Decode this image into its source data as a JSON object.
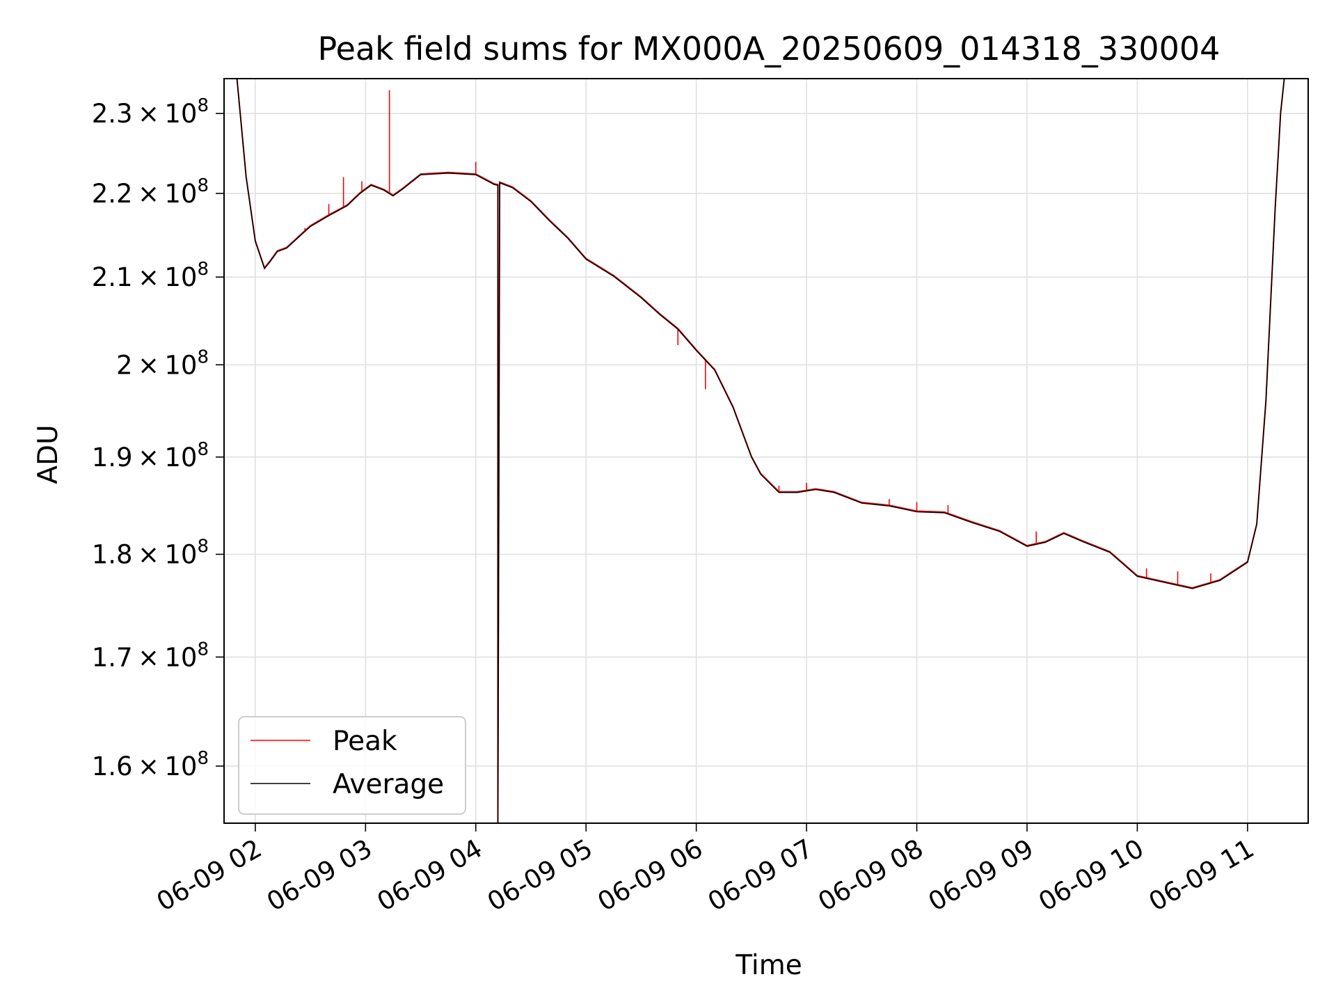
{
  "chart_data": {
    "type": "line",
    "title": "Peak field sums for MX000A_20250609_014318_330004",
    "xlabel": "Time",
    "ylabel": "ADU",
    "yscale": "log",
    "ylim": [
      155000000,
      234500000
    ],
    "xlim": [
      "2025-06-09 01:43",
      "2025-06-09 11:33"
    ],
    "grid": true,
    "legend_position": "lower-left",
    "x_ticks": [
      "2025-06-09 02:00",
      "2025-06-09 03:00",
      "2025-06-09 04:00",
      "2025-06-09 05:00",
      "2025-06-09 06:00",
      "2025-06-09 07:00",
      "2025-06-09 08:00",
      "2025-06-09 09:00",
      "2025-06-09 10:00",
      "2025-06-09 11:00"
    ],
    "x_tick_labels": [
      "06-09 02",
      "06-09 03",
      "06-09 04",
      "06-09 05",
      "06-09 06",
      "06-09 07",
      "06-09 08",
      "06-09 09",
      "06-09 10",
      "06-09 11"
    ],
    "y_ticks": [
      {
        "value": 160000000,
        "mantissa": "1.6",
        "exponent": "8"
      },
      {
        "value": 170000000,
        "mantissa": "1.7",
        "exponent": "8"
      },
      {
        "value": 180000000,
        "mantissa": "1.8",
        "exponent": "8"
      },
      {
        "value": 190000000,
        "mantissa": "1.9",
        "exponent": "8"
      },
      {
        "value": 200000000,
        "mantissa": "2",
        "exponent": "8"
      },
      {
        "value": 210000000,
        "mantissa": "2.1",
        "exponent": "8"
      },
      {
        "value": 220000000,
        "mantissa": "2.2",
        "exponent": "8"
      },
      {
        "value": 230000000,
        "mantissa": "2.3",
        "exponent": "8"
      }
    ],
    "series": [
      {
        "name": "Average",
        "color": "#000000",
        "x": [
          "2025-06-09 01:43",
          "2025-06-09 01:50",
          "2025-06-09 01:55",
          "2025-06-09 02:00",
          "2025-06-09 02:05",
          "2025-06-09 02:08",
          "2025-06-09 02:12",
          "2025-06-09 02:17",
          "2025-06-09 02:25",
          "2025-06-09 02:30",
          "2025-06-09 02:40",
          "2025-06-09 02:50",
          "2025-06-09 02:57",
          "2025-06-09 03:03",
          "2025-06-09 03:10",
          "2025-06-09 03:15",
          "2025-06-09 03:20",
          "2025-06-09 03:30",
          "2025-06-09 03:45",
          "2025-06-09 04:00",
          "2025-06-09 04:10",
          "2025-06-09 04:12",
          "2025-06-09 04:12",
          "2025-06-09 04:13",
          "2025-06-09 04:20",
          "2025-06-09 04:30",
          "2025-06-09 04:40",
          "2025-06-09 04:50",
          "2025-06-09 05:00",
          "2025-06-09 05:15",
          "2025-06-09 05:30",
          "2025-06-09 05:40",
          "2025-06-09 05:50",
          "2025-06-09 06:00",
          "2025-06-09 06:10",
          "2025-06-09 06:20",
          "2025-06-09 06:30",
          "2025-06-09 06:35",
          "2025-06-09 06:45",
          "2025-06-09 06:55",
          "2025-06-09 07:05",
          "2025-06-09 07:15",
          "2025-06-09 07:30",
          "2025-06-09 07:45",
          "2025-06-09 08:00",
          "2025-06-09 08:15",
          "2025-06-09 08:30",
          "2025-06-09 08:45",
          "2025-06-09 09:00",
          "2025-06-09 09:10",
          "2025-06-09 09:20",
          "2025-06-09 09:30",
          "2025-06-09 09:45",
          "2025-06-09 10:00",
          "2025-06-09 10:15",
          "2025-06-09 10:30",
          "2025-06-09 10:45",
          "2025-06-09 11:00",
          "2025-06-09 11:05",
          "2025-06-09 11:10",
          "2025-06-09 11:15",
          "2025-06-09 11:18",
          "2025-06-09 11:20"
        ],
        "y": [
          234500000,
          234500000,
          222000000,
          214200000,
          211000000,
          211800000,
          213000000,
          213400000,
          215000000,
          216000000,
          217300000,
          218500000,
          220000000,
          221000000,
          220400000,
          219700000,
          220500000,
          222300000,
          222500000,
          222300000,
          221100000,
          221000000,
          155000000,
          221300000,
          220700000,
          219000000,
          216700000,
          214600000,
          212100000,
          210100000,
          207600000,
          205700000,
          204000000,
          201600000,
          199400000,
          195300000,
          190000000,
          188200000,
          186300000,
          186300000,
          186600000,
          186300000,
          185200000,
          184900000,
          184300000,
          184200000,
          183200000,
          182300000,
          180800000,
          181200000,
          182100000,
          181300000,
          180200000,
          177800000,
          177200000,
          176600000,
          177400000,
          179200000,
          183000000,
          196000000,
          218000000,
          230000000,
          234500000
        ]
      },
      {
        "name": "Peak",
        "color": "#ff0000",
        "spikes": [
          {
            "x": "2025-06-09 03:13",
            "y": 233000000
          },
          {
            "x": "2025-06-09 02:48",
            "y": 222000000
          },
          {
            "x": "2025-06-09 02:58",
            "y": 221500000
          },
          {
            "x": "2025-06-09 02:40",
            "y": 218700000
          },
          {
            "x": "2025-06-09 02:27",
            "y": 215800000
          },
          {
            "x": "2025-06-09 02:20",
            "y": 214000000
          },
          {
            "x": "2025-06-09 04:00",
            "y": 223900000
          },
          {
            "x": "2025-06-09 05:50",
            "y": 202200000
          },
          {
            "x": "2025-06-09 06:05",
            "y": 197300000
          },
          {
            "x": "2025-06-09 06:45",
            "y": 187000000
          },
          {
            "x": "2025-06-09 07:00",
            "y": 187300000
          },
          {
            "x": "2025-06-09 07:45",
            "y": 185600000
          },
          {
            "x": "2025-06-09 08:00",
            "y": 185300000
          },
          {
            "x": "2025-06-09 08:17",
            "y": 185000000
          },
          {
            "x": "2025-06-09 09:05",
            "y": 182300000
          },
          {
            "x": "2025-06-09 10:05",
            "y": 178600000
          },
          {
            "x": "2025-06-09 10:22",
            "y": 178300000
          },
          {
            "x": "2025-06-09 10:40",
            "y": 178100000
          }
        ]
      }
    ]
  }
}
